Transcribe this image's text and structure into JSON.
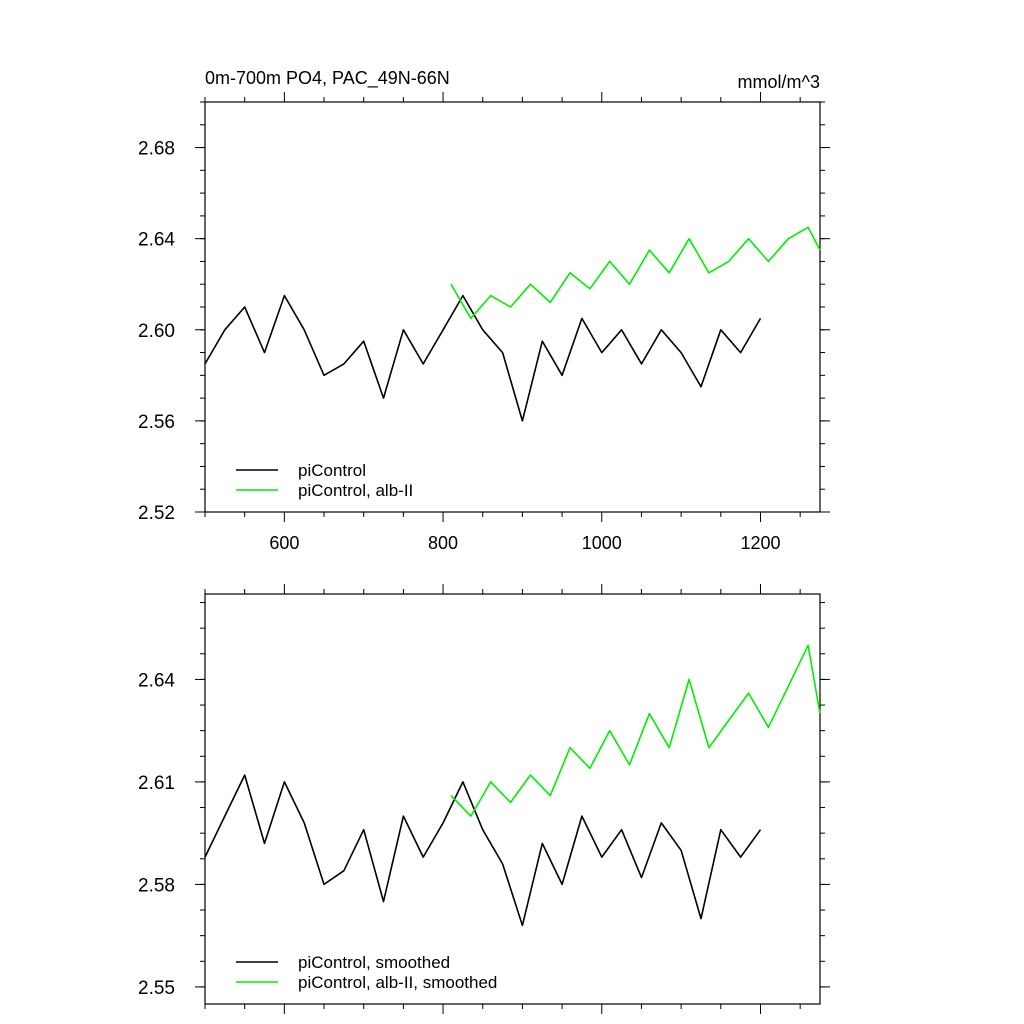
{
  "chart_data": [
    {
      "type": "line",
      "title": "0m-700m PO4, PAC_49N-66N",
      "units": "mmol/m^3",
      "xlim": [
        500,
        1275
      ],
      "ylim": [
        2.52,
        2.7
      ],
      "x_ticks": [
        600,
        800,
        1000,
        1200
      ],
      "x_tick_labels": [
        "600",
        "800",
        "1000",
        "1200"
      ],
      "y_ticks": [
        2.52,
        2.56,
        2.6,
        2.64,
        2.68
      ],
      "y_tick_labels": [
        "2.52",
        "2.56",
        "2.60",
        "2.64",
        "2.68"
      ],
      "legend": "bottom-left",
      "series": [
        {
          "name": "piControl",
          "color": "#000000",
          "x": [
            500,
            525,
            550,
            575,
            600,
            625,
            650,
            675,
            700,
            725,
            750,
            775,
            800,
            825,
            850,
            875,
            900,
            925,
            950,
            975,
            1000,
            1025,
            1050,
            1075,
            1100,
            1125,
            1150,
            1175,
            1200
          ],
          "y": [
            2.585,
            2.6,
            2.61,
            2.59,
            2.615,
            2.6,
            2.58,
            2.585,
            2.595,
            2.57,
            2.6,
            2.585,
            2.6,
            2.615,
            2.6,
            2.59,
            2.56,
            2.595,
            2.58,
            2.605,
            2.59,
            2.6,
            2.585,
            2.6,
            2.59,
            2.575,
            2.6,
            2.59,
            2.605
          ]
        },
        {
          "name": "piControl, alb-II",
          "color": "#00ee00",
          "x": [
            810,
            835,
            860,
            885,
            910,
            935,
            960,
            985,
            1010,
            1035,
            1060,
            1085,
            1110,
            1135,
            1160,
            1185,
            1210,
            1235,
            1260,
            1275
          ],
          "y": [
            2.62,
            2.605,
            2.615,
            2.61,
            2.62,
            2.612,
            2.625,
            2.618,
            2.63,
            2.62,
            2.635,
            2.625,
            2.64,
            2.625,
            2.63,
            2.64,
            2.63,
            2.64,
            2.645,
            2.635
          ]
        }
      ]
    },
    {
      "type": "line",
      "xlim": [
        500,
        1275
      ],
      "ylim": [
        2.545,
        2.665
      ],
      "x_ticks": [
        600,
        800,
        1000,
        1200
      ],
      "y_ticks": [
        2.55,
        2.58,
        2.61,
        2.64
      ],
      "y_tick_labels": [
        "2.55",
        "2.58",
        "2.61",
        "2.64"
      ],
      "legend": "bottom-left",
      "series": [
        {
          "name": "piControl, smoothed",
          "color": "#000000",
          "x": [
            500,
            525,
            550,
            575,
            600,
            625,
            650,
            675,
            700,
            725,
            750,
            775,
            800,
            825,
            850,
            875,
            900,
            925,
            950,
            975,
            1000,
            1025,
            1050,
            1075,
            1100,
            1125,
            1150,
            1175,
            1200
          ],
          "y": [
            2.588,
            2.6,
            2.612,
            2.592,
            2.61,
            2.598,
            2.58,
            2.584,
            2.596,
            2.575,
            2.6,
            2.588,
            2.598,
            2.61,
            2.596,
            2.586,
            2.568,
            2.592,
            2.58,
            2.6,
            2.588,
            2.596,
            2.582,
            2.598,
            2.59,
            2.57,
            2.596,
            2.588,
            2.596
          ]
        },
        {
          "name": "piControl, alb-II, smoothed",
          "color": "#00ee00",
          "x": [
            810,
            835,
            860,
            885,
            910,
            935,
            960,
            985,
            1010,
            1035,
            1060,
            1085,
            1110,
            1135,
            1160,
            1185,
            1210,
            1235,
            1260,
            1275
          ],
          "y": [
            2.606,
            2.6,
            2.61,
            2.604,
            2.612,
            2.606,
            2.62,
            2.614,
            2.625,
            2.615,
            2.63,
            2.62,
            2.64,
            2.62,
            2.628,
            2.636,
            2.626,
            2.638,
            2.65,
            2.63
          ]
        }
      ]
    }
  ]
}
